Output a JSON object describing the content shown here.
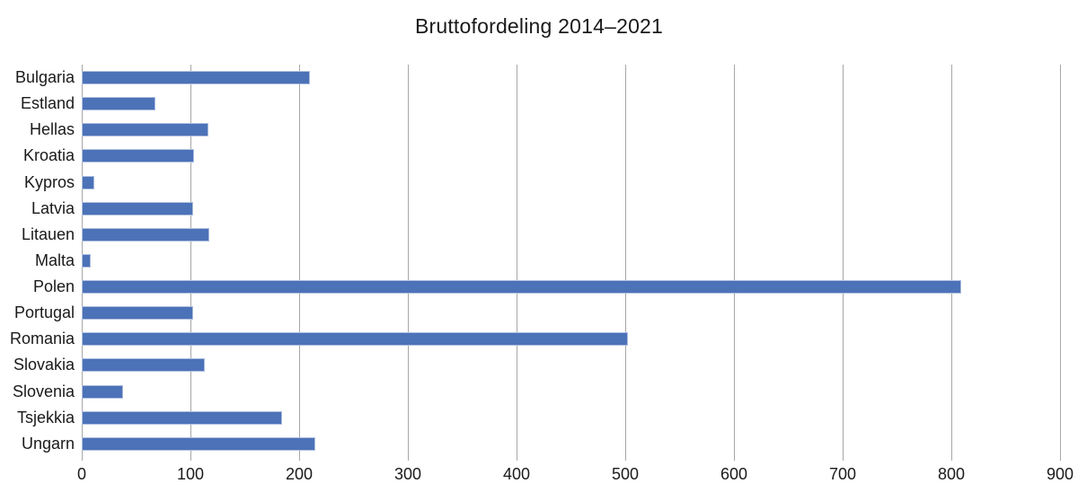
{
  "chart_data": {
    "type": "bar",
    "orientation": "horizontal",
    "title": "Bruttofordeling 2014–2021",
    "categories": [
      "Bulgaria",
      "Estland",
      "Hellas",
      "Kroatia",
      "Kypros",
      "Latvia",
      "Litauen",
      "Malta",
      "Polen",
      "Portugal",
      "Romania",
      "Slovakia",
      "Slovenia",
      "Tsjekkia",
      "Ungarn"
    ],
    "values": [
      210.1,
      68.0,
      116.7,
      103.4,
      11.5,
      102.1,
      117.6,
      8.0,
      809.3,
      102.7,
      502.5,
      113.1,
      37.7,
      184.5,
      214.6
    ],
    "xlabel": "",
    "ylabel": "",
    "xlim": [
      0,
      900
    ],
    "x_ticks": [
      0,
      100,
      200,
      300,
      400,
      500,
      600,
      700,
      800,
      900
    ],
    "grid": "vertical-only",
    "legend": false,
    "colors": {
      "bar_fill": "#4c72b8",
      "bar_border": "#aebede",
      "gridline": "#a6a6a6",
      "text": "#1a1a1a",
      "background": "#ffffff"
    }
  }
}
